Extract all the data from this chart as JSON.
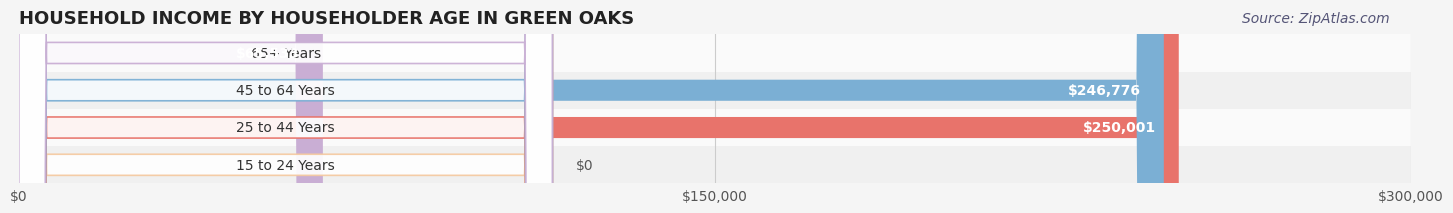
{
  "title": "HOUSEHOLD INCOME BY HOUSEHOLDER AGE IN GREEN OAKS",
  "source": "Source: ZipAtlas.com",
  "categories": [
    "15 to 24 Years",
    "25 to 44 Years",
    "45 to 64 Years",
    "65+ Years"
  ],
  "values": [
    0,
    250001,
    246776,
    65533
  ],
  "bar_colors": [
    "#f5c9a0",
    "#e8736b",
    "#7bafd4",
    "#c9aed4"
  ],
  "bar_edge_colors": [
    "#e8a87c",
    "#d45a52",
    "#5a95c0",
    "#b090c0"
  ],
  "label_colors": [
    "#555555",
    "#ffffff",
    "#ffffff",
    "#555555"
  ],
  "x_max": 300000,
  "x_ticks": [
    0,
    150000,
    300000
  ],
  "x_tick_labels": [
    "$0",
    "$150,000",
    "$300,000"
  ],
  "bg_color": "#f5f5f5",
  "row_bg_colors": [
    "#f0f0f0",
    "#fafafa"
  ],
  "title_fontsize": 13,
  "label_fontsize": 10,
  "tick_fontsize": 10,
  "source_fontsize": 10,
  "value_labels": [
    "$0",
    "$250,001",
    "$246,776",
    "$65,533"
  ]
}
